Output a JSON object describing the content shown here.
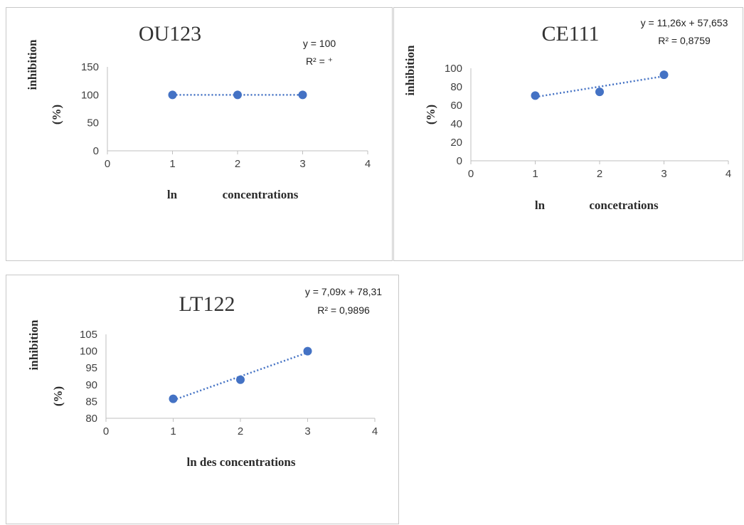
{
  "chart_data": [
    {
      "type": "scatter",
      "title": "OU123",
      "equation": "y = 100",
      "r_squared": "R² = ⁺",
      "xlabel_left": "ln",
      "xlabel_right": "concentrations",
      "ylabel_top": "inhibition",
      "ylabel_bottom": "(%)",
      "xlim": [
        0,
        4
      ],
      "ylim": [
        0,
        150
      ],
      "x_ticks": [
        0,
        1,
        2,
        3,
        4
      ],
      "y_ticks": [
        0,
        50,
        100,
        150
      ],
      "x": [
        1,
        2,
        3
      ],
      "y": [
        100,
        100,
        100
      ],
      "trendline": {
        "slope": 0,
        "intercept": 100
      },
      "marker_color": "#4472c4",
      "grid": false
    },
    {
      "type": "scatter",
      "title": "CE111",
      "equation": "y = 11,26x + 57,653",
      "r_squared": "R² = 0,8759",
      "xlabel_left": "ln",
      "xlabel_right": "concetrations",
      "ylabel_top": "inhibition",
      "ylabel_bottom": "(%)",
      "xlim": [
        0,
        4
      ],
      "ylim": [
        0,
        100
      ],
      "x_ticks": [
        0,
        1,
        2,
        3,
        4
      ],
      "y_ticks": [
        0,
        20,
        40,
        60,
        80,
        100
      ],
      "x": [
        1,
        2,
        3
      ],
      "y": [
        70.5,
        74.5,
        93
      ],
      "trendline": {
        "slope": 11.26,
        "intercept": 57.653
      },
      "marker_color": "#4472c4",
      "grid": false
    },
    {
      "type": "scatter",
      "title": "LT122",
      "equation": "y = 7,09x + 78,31",
      "r_squared": "R² = 0,9896",
      "xlabel": "ln des concentrations",
      "ylabel_top": "inhibition",
      "ylabel_bottom": "(%)",
      "xlim": [
        0,
        4
      ],
      "ylim": [
        80,
        105
      ],
      "x_ticks": [
        0,
        1,
        2,
        3,
        4
      ],
      "y_ticks": [
        80,
        85,
        90,
        95,
        100,
        105
      ],
      "x": [
        1,
        2,
        3
      ],
      "y": [
        85.8,
        91.5,
        100
      ],
      "trendline": {
        "slope": 7.09,
        "intercept": 78.31
      },
      "marker_color": "#4472c4",
      "grid": false
    }
  ]
}
